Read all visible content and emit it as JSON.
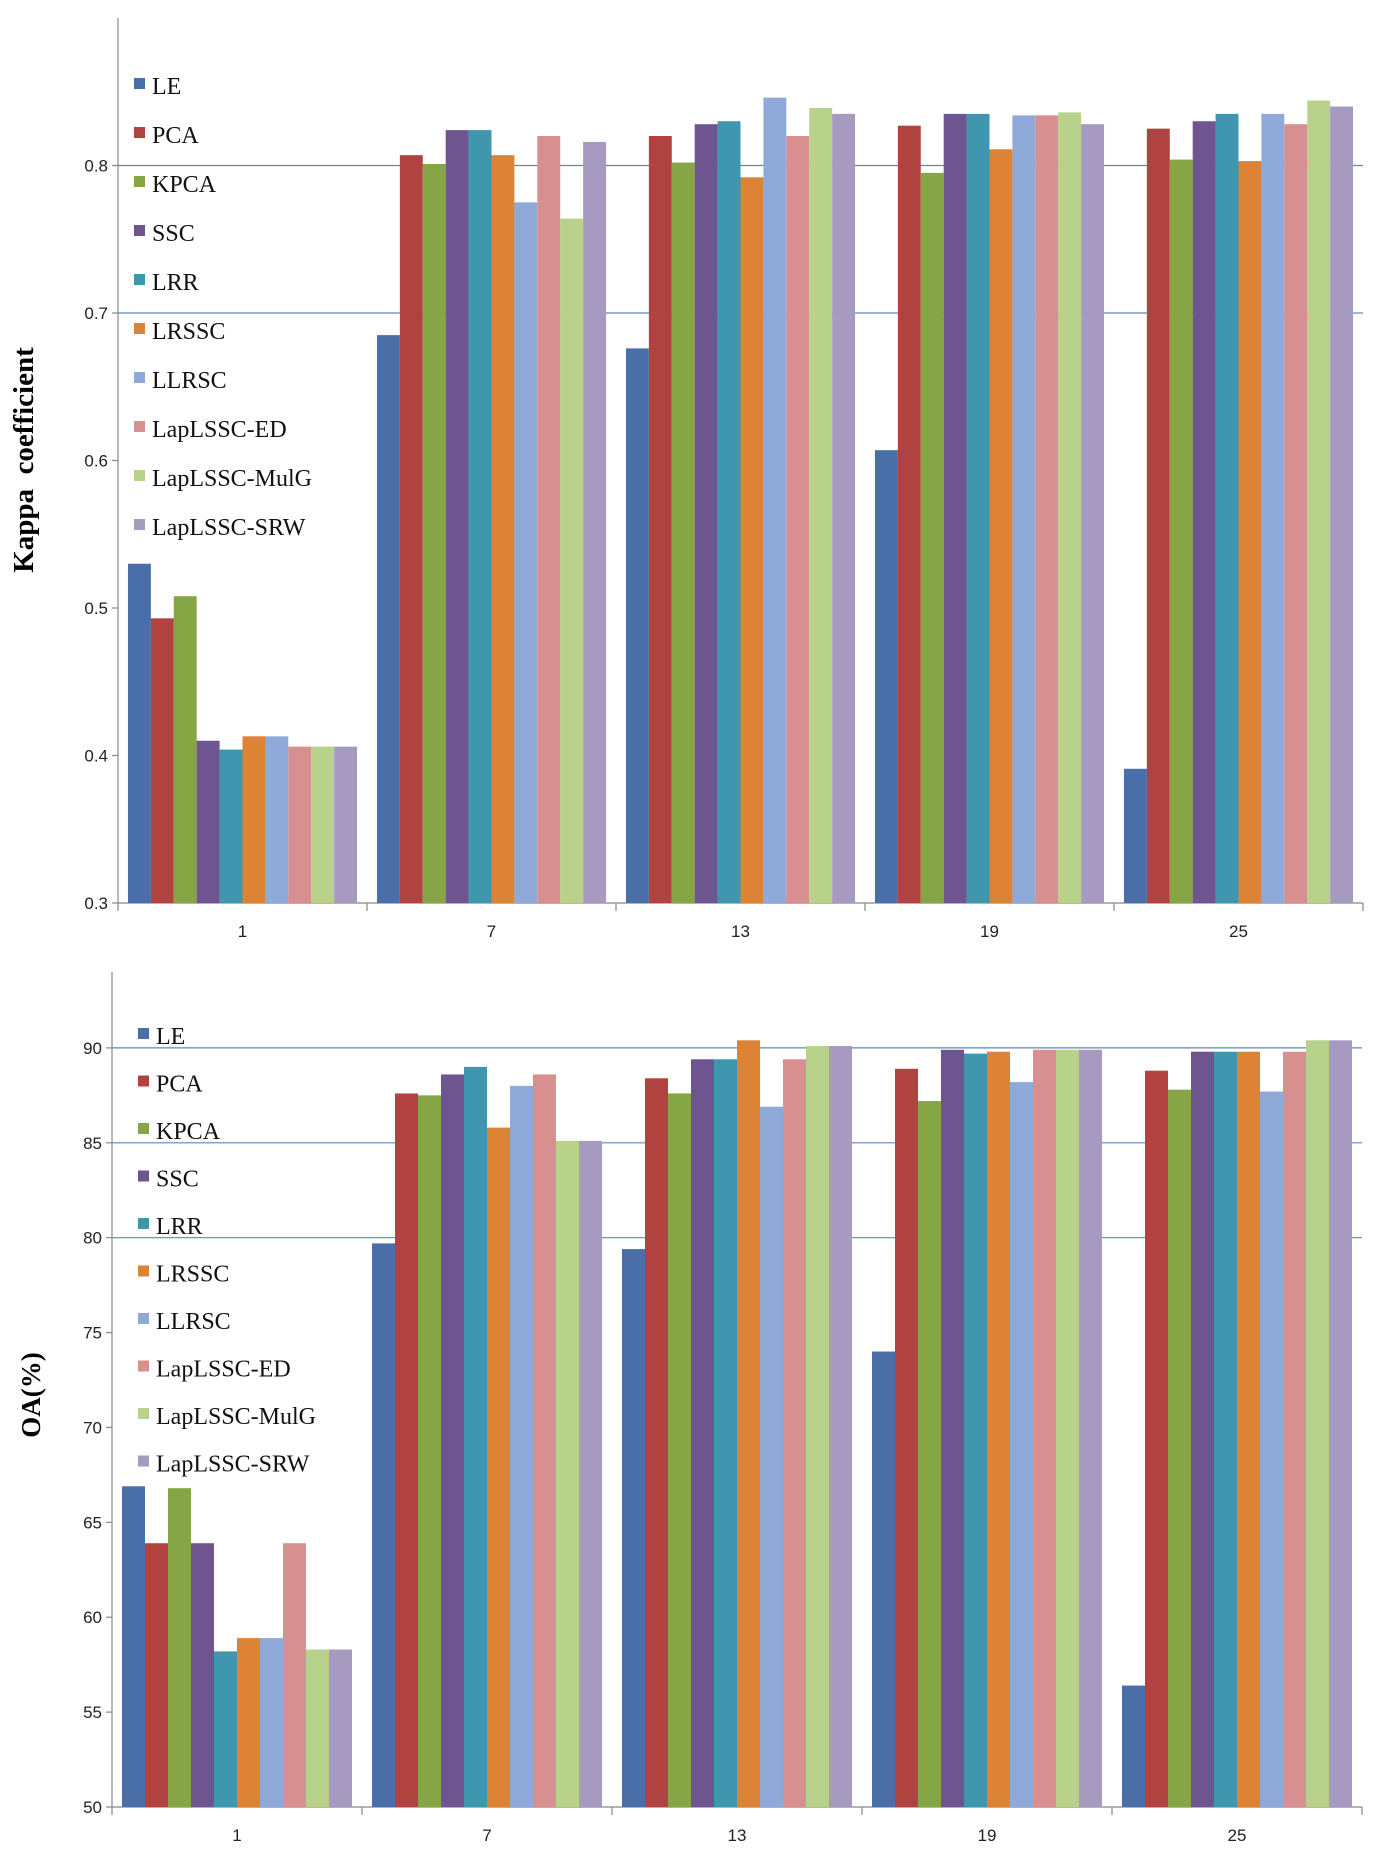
{
  "colors": [
    "#4a6fa8",
    "#b0433f",
    "#86a544",
    "#6e558f",
    "#3e97af",
    "#dd8335",
    "#8faad8",
    "#d88f8f",
    "#b8d28c",
    "#a79ac1"
  ],
  "chart_data": [
    {
      "type": "bar",
      "ylabel": "Kappa  coefficient",
      "ylim": [
        0.3,
        0.9
      ],
      "yticks": [
        "0.3",
        "0.4",
        "0.5",
        "0.6",
        "0.7",
        "0.8"
      ],
      "ytick_values": [
        0.3,
        0.4,
        0.5,
        0.6,
        0.7,
        0.8
      ],
      "gridlines": [
        0.7,
        0.8
      ],
      "categories": [
        "1",
        "7",
        "13",
        "19",
        "25"
      ],
      "legend_position": "top-left",
      "series": [
        {
          "name": "LE",
          "values": [
            0.53,
            0.685,
            0.676,
            0.607,
            0.391
          ]
        },
        {
          "name": "PCA",
          "values": [
            0.493,
            0.807,
            0.82,
            0.827,
            0.825
          ]
        },
        {
          "name": "KPCA",
          "values": [
            0.508,
            0.801,
            0.802,
            0.795,
            0.804
          ]
        },
        {
          "name": "SSC",
          "values": [
            0.41,
            0.824,
            0.828,
            0.835,
            0.83
          ]
        },
        {
          "name": "LRR",
          "values": [
            0.404,
            0.824,
            0.83,
            0.835,
            0.835
          ]
        },
        {
          "name": "LRSSC",
          "values": [
            0.413,
            0.807,
            0.792,
            0.811,
            0.803
          ]
        },
        {
          "name": "LLRSC",
          "values": [
            0.413,
            0.775,
            0.846,
            0.834,
            0.835
          ]
        },
        {
          "name": "LapLSSC-ED",
          "values": [
            0.406,
            0.82,
            0.82,
            0.834,
            0.828
          ]
        },
        {
          "name": "LapLSSC-MulG",
          "values": [
            0.406,
            0.764,
            0.839,
            0.836,
            0.844
          ]
        },
        {
          "name": "LapLSSC-SRW",
          "values": [
            0.406,
            0.816,
            0.835,
            0.828,
            0.84
          ]
        }
      ]
    },
    {
      "type": "bar",
      "ylabel": "OA(%)",
      "ylim": [
        50,
        94
      ],
      "yticks": [
        "50",
        "55",
        "60",
        "65",
        "70",
        "75",
        "80",
        "85",
        "90"
      ],
      "ytick_values": [
        50,
        55,
        60,
        65,
        70,
        75,
        80,
        85,
        90
      ],
      "gridlines": [
        80,
        85,
        90
      ],
      "categories": [
        "1",
        "7",
        "13",
        "19",
        "25"
      ],
      "legend_position": "top-left",
      "series": [
        {
          "name": "LE",
          "values": [
            66.9,
            79.7,
            79.4,
            74.0,
            56.4
          ]
        },
        {
          "name": "PCA",
          "values": [
            63.9,
            87.6,
            88.4,
            88.9,
            88.8
          ]
        },
        {
          "name": "KPCA",
          "values": [
            66.8,
            87.5,
            87.6,
            87.2,
            87.8
          ]
        },
        {
          "name": "SSC",
          "values": [
            63.9,
            88.6,
            89.4,
            89.9,
            89.8
          ]
        },
        {
          "name": "LRR",
          "values": [
            58.2,
            89.0,
            89.4,
            89.7,
            89.8
          ]
        },
        {
          "name": "LRSSC",
          "values": [
            58.9,
            85.8,
            90.4,
            89.8,
            89.8
          ]
        },
        {
          "name": "LLRSC",
          "values": [
            58.9,
            88.0,
            86.9,
            88.2,
            87.7
          ]
        },
        {
          "name": "LapLSSC-ED",
          "values": [
            63.9,
            88.6,
            89.4,
            89.9,
            89.8
          ]
        },
        {
          "name": "LapLSSC-MulG",
          "values": [
            58.3,
            85.1,
            90.1,
            89.9,
            90.4
          ]
        },
        {
          "name": "LapLSSC-SRW",
          "values": [
            58.3,
            85.1,
            90.1,
            89.9,
            90.4
          ]
        }
      ]
    }
  ]
}
